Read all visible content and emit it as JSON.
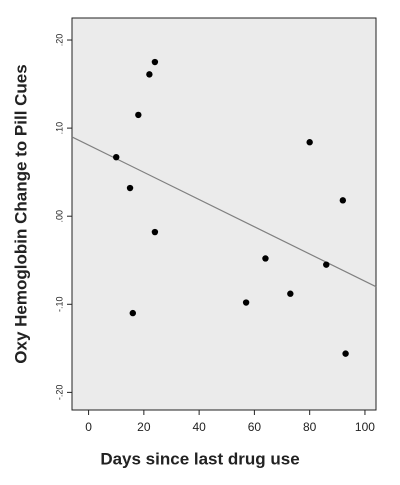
{
  "chart_data": {
    "type": "scatter",
    "x_label": "Days since last drug use",
    "y_label": "Oxy Hemoglobin Change to Pill Cues",
    "x": [
      10,
      24,
      22,
      18,
      15,
      24,
      16,
      57,
      64,
      73,
      80,
      86,
      92,
      93
    ],
    "values": [
      0.067,
      0.175,
      0.161,
      0.115,
      0.032,
      -0.018,
      -0.11,
      -0.098,
      -0.048,
      -0.088,
      0.084,
      -0.055,
      0.018,
      -0.156
    ],
    "color": "#000000",
    "trendline": {
      "x": [
        -6,
        104
      ],
      "y": [
        0.09,
        -0.08
      ],
      "color": "#808080"
    },
    "xlim": [
      -6,
      104
    ],
    "ylim": [
      -0.22,
      0.225
    ],
    "xticks": [
      0,
      20,
      40,
      60,
      80,
      100
    ],
    "yticks": [
      {
        "value": 0.2,
        "label": ".20"
      },
      {
        "value": 0.1,
        "label": ".10"
      },
      {
        "value": 0,
        "label": ".00"
      },
      {
        "value": -0.1,
        "label": "-.10"
      },
      {
        "value": -0.2,
        "label": "-.20"
      }
    ]
  }
}
